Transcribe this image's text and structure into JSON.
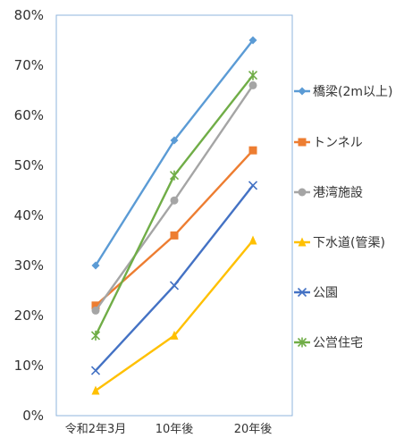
{
  "chart_data": {
    "type": "line",
    "categories": [
      "令和2年3月",
      "10年後",
      "20年後"
    ],
    "y_ticks": [
      "0%",
      "10%",
      "20%",
      "30%",
      "40%",
      "50%",
      "60%",
      "70%",
      "80%"
    ],
    "ylim": [
      0,
      80
    ],
    "grid": false,
    "legend_position": "right",
    "series": [
      {
        "name": "橋梁(2m以上)",
        "values": [
          30,
          55,
          75
        ],
        "color": "#5B9BD5",
        "marker": "diamond"
      },
      {
        "name": "トンネル",
        "values": [
          22,
          36,
          53
        ],
        "color": "#ED7D31",
        "marker": "square"
      },
      {
        "name": "港湾施設",
        "values": [
          21,
          43,
          66
        ],
        "color": "#A5A5A5",
        "marker": "circle"
      },
      {
        "name": "下水道(管渠)",
        "values": [
          5,
          16,
          35
        ],
        "color": "#FFC000",
        "marker": "triangle"
      },
      {
        "name": "公園",
        "values": [
          9,
          26,
          46
        ],
        "color": "#4472C4",
        "marker": "x"
      },
      {
        "name": "公営住宅",
        "values": [
          16,
          48,
          68
        ],
        "color": "#70AD47",
        "marker": "star"
      }
    ]
  }
}
